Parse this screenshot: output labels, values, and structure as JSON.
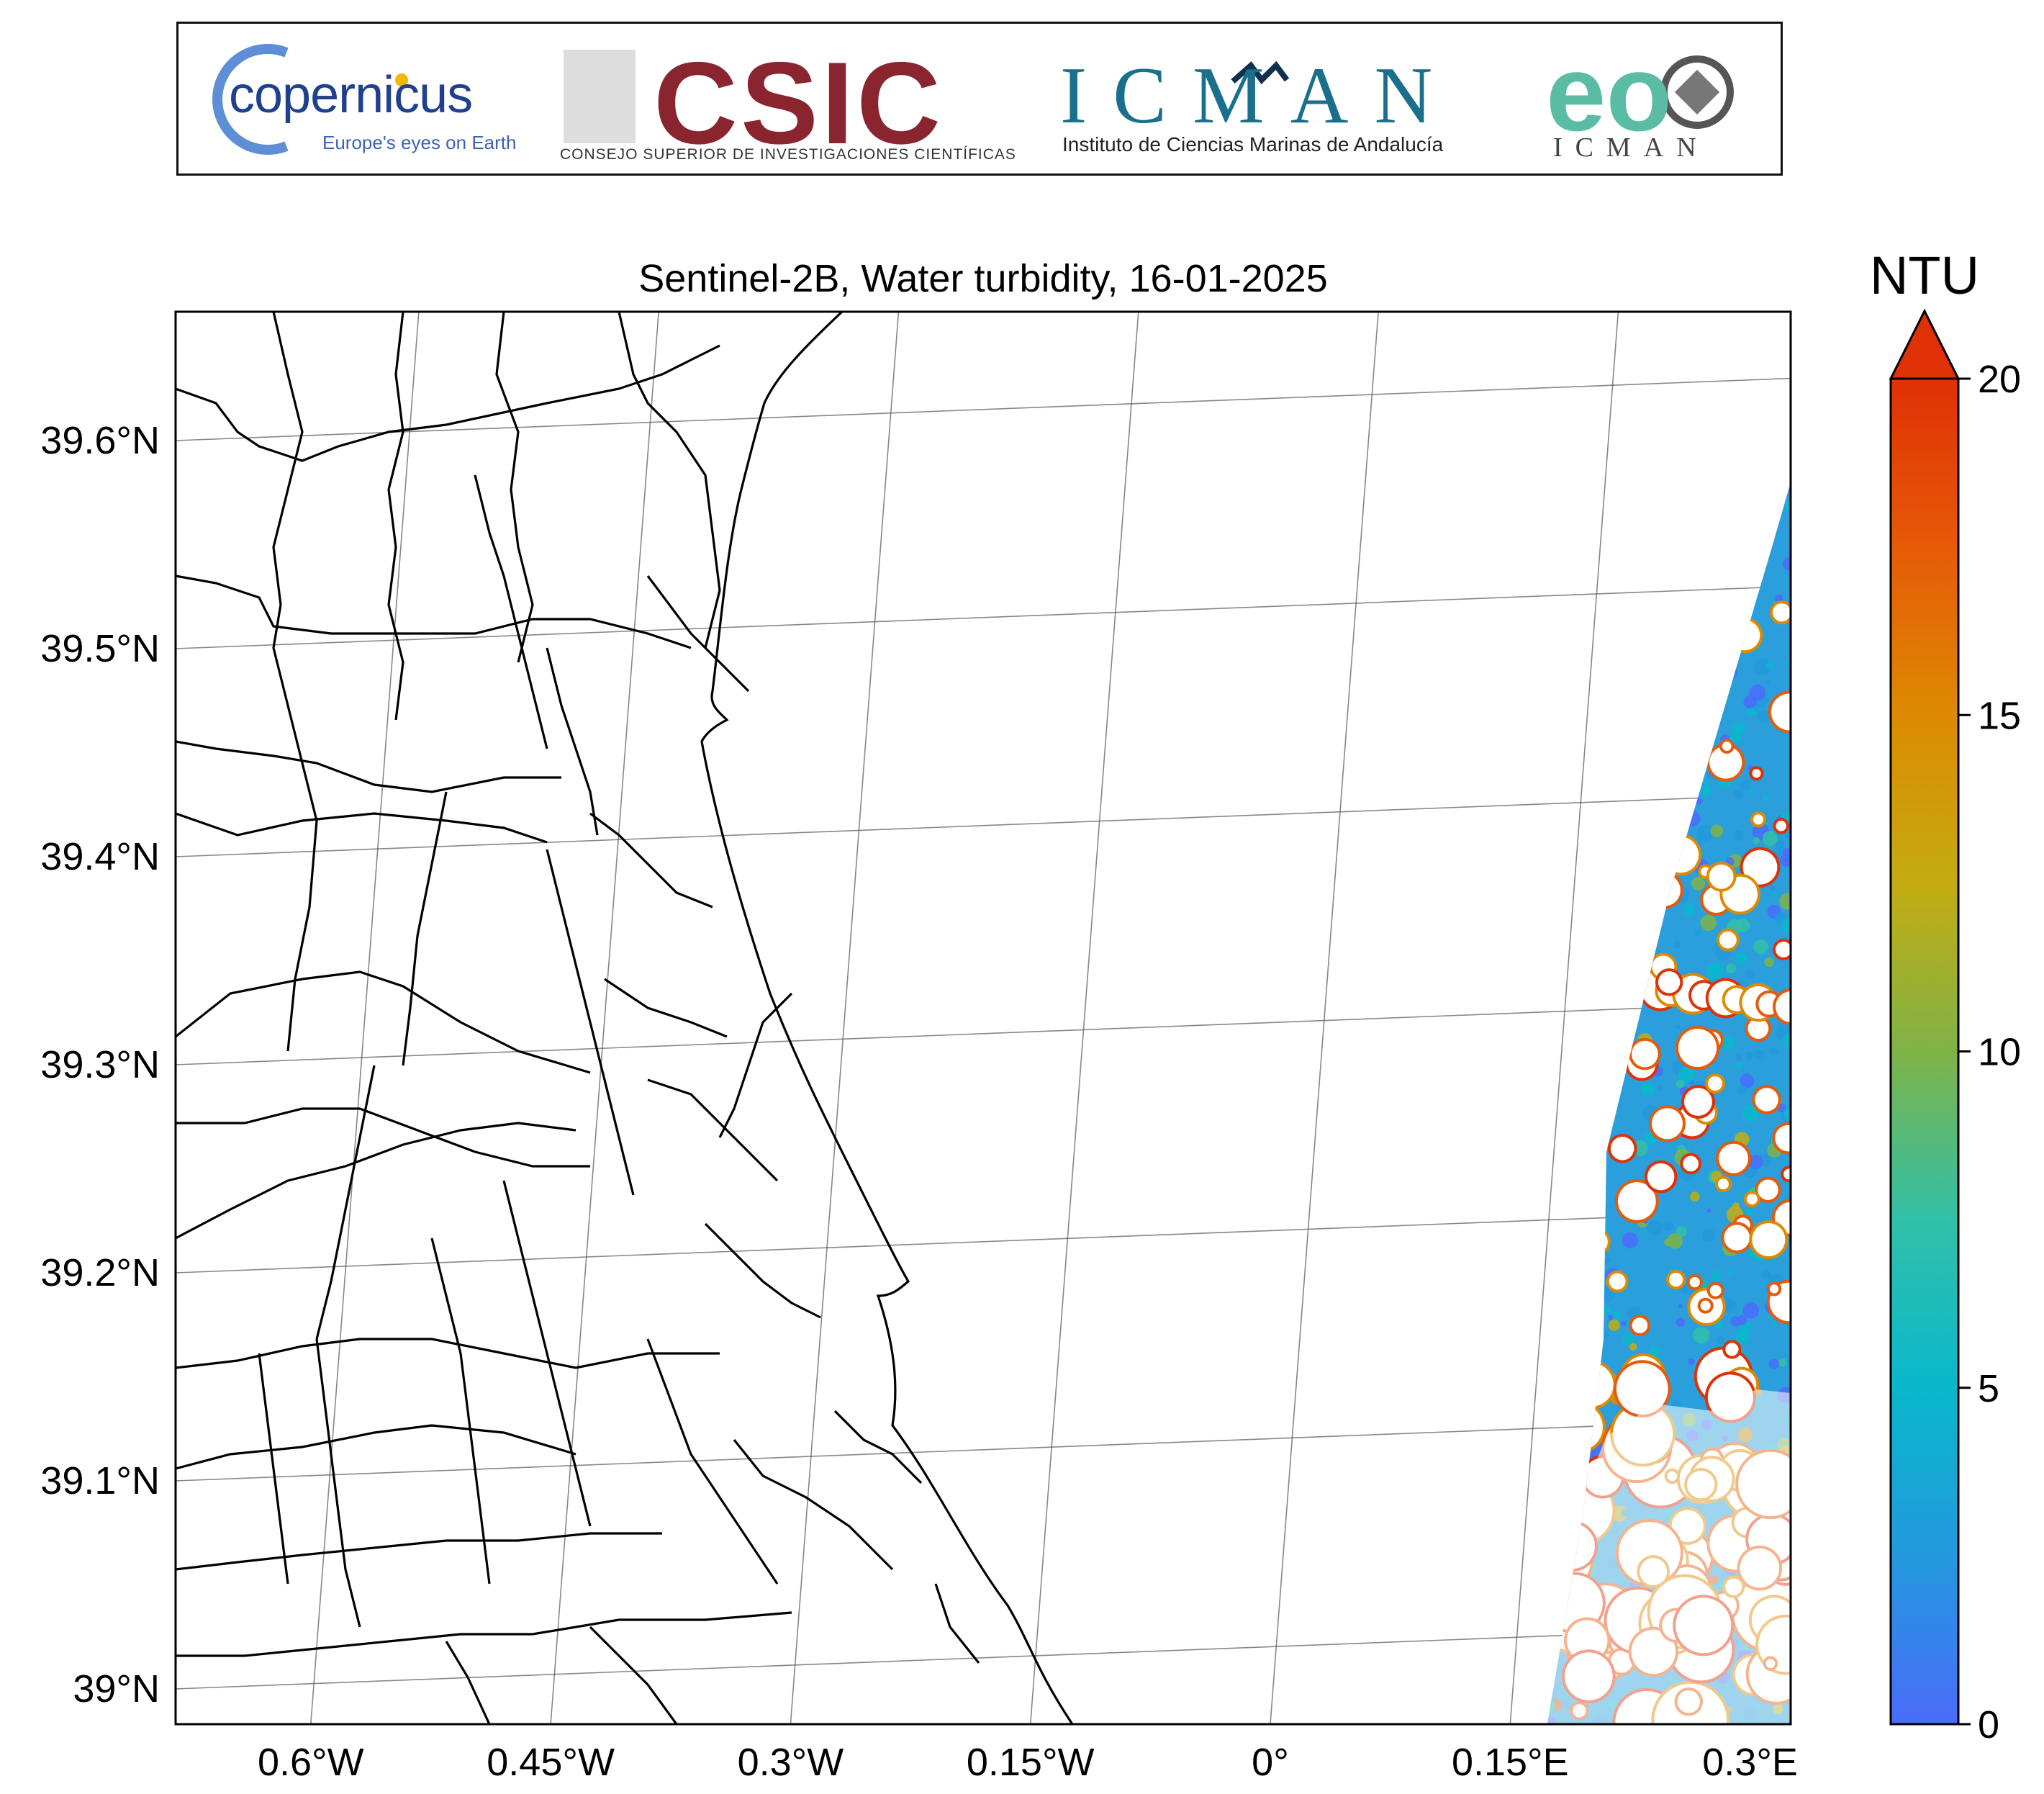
{
  "title": "Sentinel-2B, Water turbidity, 16-01-2025",
  "logos": {
    "copernicus": {
      "name": "copernicus",
      "tagline": "Europe's eyes on Earth",
      "color": "#1f3f8f"
    },
    "csic": {
      "name": "CSIC",
      "subtitle": "CONSEJO SUPERIOR DE INVESTIGACIONES CIENTÍFICAS",
      "color": "#8a2530"
    },
    "icman": {
      "name": "ICMAN",
      "subtitle": "Instituto de Ciencias Marinas de Andalucía",
      "color": "#1a6f8c"
    },
    "eo": {
      "name": "eo",
      "subtitle": "ICMAN",
      "color": "#5bbca5"
    }
  },
  "map": {
    "lon_ticks": [
      {
        "value": -0.6,
        "label": "0.6°W"
      },
      {
        "value": -0.45,
        "label": "0.45°W"
      },
      {
        "value": -0.3,
        "label": "0.3°W"
      },
      {
        "value": -0.15,
        "label": "0.15°W"
      },
      {
        "value": 0.0,
        "label": "0°"
      },
      {
        "value": 0.15,
        "label": "0.15°E"
      },
      {
        "value": 0.3,
        "label": "0.3°E"
      }
    ],
    "lat_ticks": [
      {
        "value": 39.6,
        "label": "39.6°N"
      },
      {
        "value": 39.5,
        "label": "39.5°N"
      },
      {
        "value": 39.4,
        "label": "39.4°N"
      },
      {
        "value": 39.3,
        "label": "39.3°N"
      },
      {
        "value": 39.2,
        "label": "39.2°N"
      },
      {
        "value": 39.1,
        "label": "39.1°N"
      },
      {
        "value": 39.0,
        "label": "39°N"
      }
    ],
    "gridlines": true,
    "land_color": "#ffffff",
    "boundary_color": "#000000"
  },
  "colorbar": {
    "label": "NTU",
    "min": 0,
    "max": 20,
    "extend": "max",
    "ticks": [
      {
        "value": 0,
        "label": "0"
      },
      {
        "value": 5,
        "label": "5"
      },
      {
        "value": 10,
        "label": "10"
      },
      {
        "value": 15,
        "label": "15"
      },
      {
        "value": 20,
        "label": "20"
      }
    ],
    "colors": [
      "#4a6cfa",
      "#2399dd",
      "#09b8cc",
      "#31c0a8",
      "#7fb347",
      "#c4ab12",
      "#dd8a02",
      "#e65a08",
      "#e03005"
    ]
  }
}
